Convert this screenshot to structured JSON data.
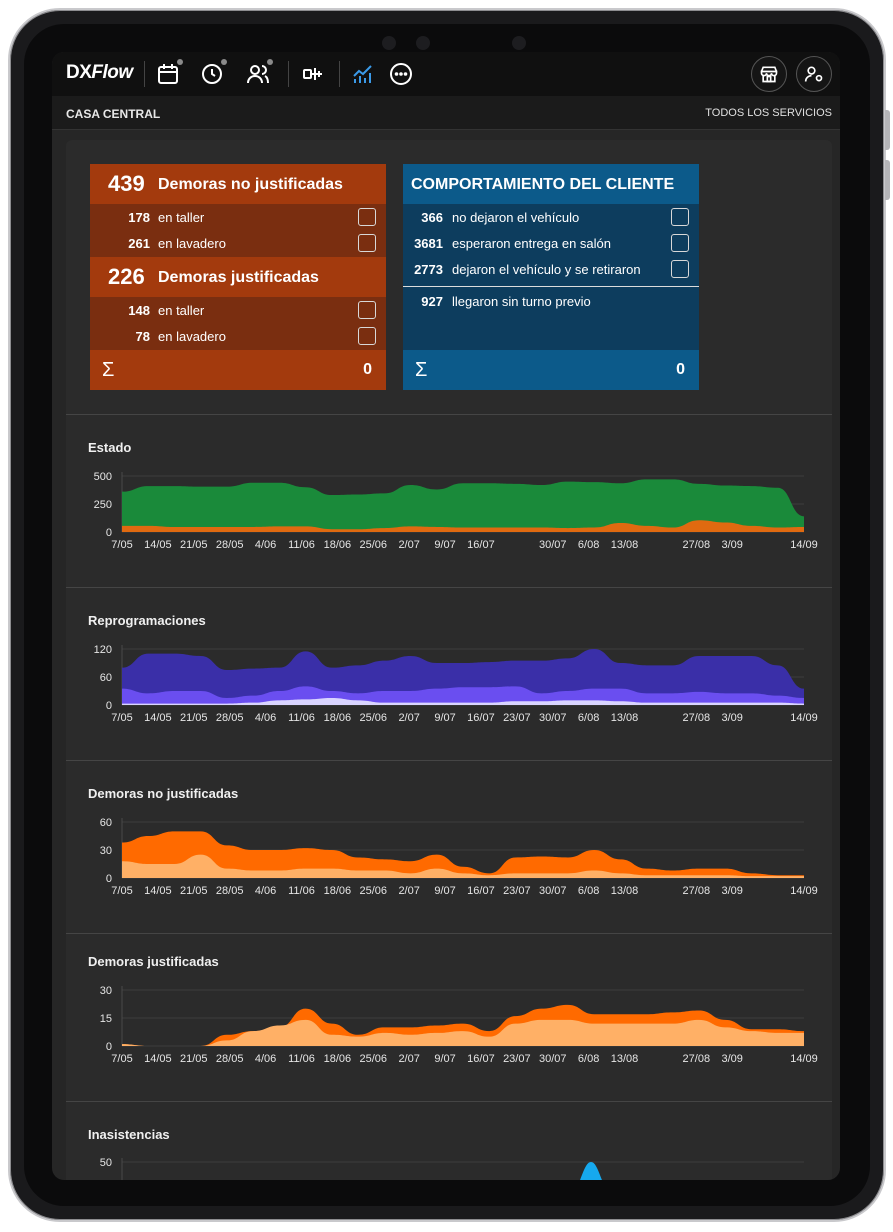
{
  "app": {
    "logo_prefix": "DX",
    "logo_suffix": "Flow"
  },
  "nav": {
    "icons": [
      "calendar-icon",
      "clock-icon",
      "users-icon",
      "service-icon",
      "chart-icon",
      "more-icon"
    ],
    "right_icons": [
      "store-icon",
      "user-settings-icon"
    ]
  },
  "subbar": {
    "location": "CASA CENTRAL",
    "filter": "TODOS LOS SERVICIOS"
  },
  "colors": {
    "orange": "#a33a0d",
    "blue": "#0c5a8a",
    "green": "#1a8a3a",
    "accent_orange": "#ff6a00"
  },
  "delays": {
    "unjustified_total": "439",
    "unjustified_label": "Demoras no justificadas",
    "unjustified_rows": [
      {
        "count": "178",
        "label": "en taller"
      },
      {
        "count": "261",
        "label": "en lavadero"
      }
    ],
    "justified_total": "226",
    "justified_label": "Demoras justificadas",
    "justified_rows": [
      {
        "count": "148",
        "label": "en taller"
      },
      {
        "count": "78",
        "label": "en lavadero"
      }
    ],
    "sum_symbol": "Σ",
    "sum_value": "0"
  },
  "customer": {
    "title": "COMPORTAMIENTO DEL CLIENTE",
    "rows": [
      {
        "count": "366",
        "label": "no dejaron el vehículo"
      },
      {
        "count": "3681",
        "label": "esperaron entrega en salón"
      },
      {
        "count": "2773",
        "label": "dejaron el vehículo y se retiraron"
      }
    ],
    "extra": {
      "count": "927",
      "label": "llegaron sin turno previo"
    },
    "sum_symbol": "Σ",
    "sum_value": "0"
  },
  "chart_data": [
    {
      "type": "area",
      "title": "Estado",
      "yticks": [
        0,
        250,
        500
      ],
      "ylim": [
        0,
        500
      ],
      "x_ticks": [
        "7/05",
        "14/05",
        "21/05",
        "28/05",
        "4/06",
        "11/06",
        "18/06",
        "25/06",
        "2/07",
        "9/07",
        "16/07",
        "",
        "30/07",
        "6/08",
        "13/08",
        "",
        "27/08",
        "3/09",
        "",
        "14/09"
      ],
      "series": [
        {
          "color": "#1a8a3a",
          "values": [
            360,
            410,
            410,
            405,
            405,
            440,
            440,
            400,
            330,
            335,
            345,
            420,
            380,
            435,
            435,
            430,
            420,
            450,
            445,
            435,
            470,
            470,
            430,
            415,
            410,
            395,
            140
          ]
        },
        {
          "color": "#e06a10",
          "values": [
            55,
            55,
            45,
            45,
            45,
            45,
            50,
            50,
            25,
            25,
            35,
            50,
            45,
            40,
            40,
            40,
            40,
            35,
            40,
            80,
            55,
            40,
            105,
            85,
            55,
            40,
            45
          ]
        }
      ]
    },
    {
      "type": "area",
      "title": "Reprogramaciones",
      "yticks": [
        0,
        60,
        120
      ],
      "ylim": [
        0,
        120
      ],
      "x_ticks": [
        "7/05",
        "14/05",
        "21/05",
        "28/05",
        "4/06",
        "11/06",
        "18/06",
        "25/06",
        "2/07",
        "9/07",
        "16/07",
        "23/07",
        "30/07",
        "6/08",
        "13/08",
        "",
        "27/08",
        "3/09",
        "",
        "14/09"
      ],
      "series": [
        {
          "color": "#3a2fa8",
          "values": [
            80,
            110,
            110,
            105,
            75,
            78,
            80,
            115,
            80,
            85,
            95,
            105,
            90,
            90,
            92,
            95,
            95,
            100,
            120,
            90,
            85,
            85,
            105,
            105,
            105,
            85,
            35
          ]
        },
        {
          "color": "#6a4ef0",
          "values": [
            35,
            25,
            30,
            30,
            15,
            20,
            30,
            40,
            30,
            25,
            30,
            30,
            35,
            38,
            38,
            40,
            25,
            30,
            35,
            35,
            25,
            25,
            28,
            25,
            25,
            20,
            15
          ]
        },
        {
          "color": "#d9d4ff",
          "values": [
            3,
            3,
            3,
            3,
            3,
            5,
            10,
            12,
            15,
            10,
            5,
            5,
            5,
            5,
            5,
            8,
            8,
            10,
            10,
            8,
            5,
            5,
            5,
            5,
            5,
            5,
            3
          ]
        }
      ]
    },
    {
      "type": "area",
      "title": "Demoras no justificadas",
      "yticks": [
        0,
        30,
        60
      ],
      "ylim": [
        0,
        60
      ],
      "x_ticks": [
        "7/05",
        "14/05",
        "21/05",
        "28/05",
        "4/06",
        "11/06",
        "18/06",
        "25/06",
        "2/07",
        "9/07",
        "16/07",
        "23/07",
        "30/07",
        "6/08",
        "13/08",
        "",
        "27/08",
        "3/09",
        "",
        "14/09"
      ],
      "series": [
        {
          "color": "#ff6a00",
          "values": [
            38,
            45,
            50,
            50,
            35,
            30,
            30,
            32,
            30,
            22,
            20,
            18,
            25,
            12,
            5,
            22,
            23,
            22,
            30,
            20,
            10,
            8,
            10,
            10,
            5,
            3,
            3
          ]
        },
        {
          "color": "#ffb066",
          "values": [
            18,
            15,
            15,
            25,
            10,
            8,
            8,
            10,
            10,
            8,
            8,
            5,
            10,
            5,
            3,
            5,
            5,
            5,
            8,
            5,
            3,
            3,
            3,
            3,
            2,
            2,
            2
          ]
        }
      ]
    },
    {
      "type": "area",
      "title": "Demoras justificadas",
      "yticks": [
        0,
        15,
        30
      ],
      "ylim": [
        0,
        30
      ],
      "x_ticks": [
        "7/05",
        "14/05",
        "21/05",
        "28/05",
        "4/06",
        "11/06",
        "18/06",
        "25/06",
        "2/07",
        "9/07",
        "16/07",
        "23/07",
        "30/07",
        "6/08",
        "13/08",
        "",
        "27/08",
        "3/09",
        "",
        "14/09"
      ],
      "series": [
        {
          "color": "#ff6a00",
          "values": [
            1,
            0,
            0,
            0,
            6,
            8,
            10,
            20,
            12,
            6,
            10,
            10,
            11,
            12,
            8,
            16,
            20,
            22,
            17,
            17,
            17,
            18,
            19,
            14,
            9,
            9,
            8
          ]
        },
        {
          "color": "#ffb066",
          "values": [
            1,
            0,
            0,
            0,
            3,
            8,
            11,
            14,
            6,
            5,
            7,
            6,
            7,
            8,
            5,
            12,
            14,
            14,
            12,
            12,
            12,
            12,
            14,
            10,
            8,
            7,
            7
          ]
        }
      ]
    },
    {
      "type": "area",
      "title": "Inasistencias",
      "yticks": [
        50
      ],
      "ylim": [
        0,
        50
      ],
      "series": [
        {
          "color": "#16a9ee",
          "values": []
        }
      ]
    }
  ]
}
